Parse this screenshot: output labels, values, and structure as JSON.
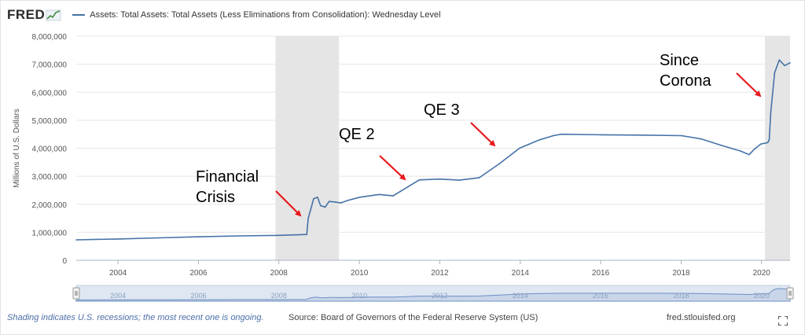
{
  "header": {
    "logo": "FRED",
    "series_label": "Assets: Total Assets: Total Assets (Less Eliminations from Consolidation): Wednesday Level"
  },
  "colors": {
    "series": "#4572a7",
    "recession": "#e5e5e5",
    "annotation_arrow": "#e8191c",
    "navigator_fill": "#c9d6ea",
    "navigator_mask": "#dfe7f3"
  },
  "icons": {
    "logo_mark": "fred-chart-icon",
    "fullscreen": "fullscreen-icon"
  },
  "chart_data": {
    "type": "line",
    "title": "",
    "xlabel": "",
    "ylabel": "Millions of U.S. Dollars",
    "xlim": [
      "2002-12-18",
      "2020-09-16"
    ],
    "ylim": [
      0,
      8000000
    ],
    "x_ticks": [
      "2004",
      "2006",
      "2008",
      "2010",
      "2012",
      "2014",
      "2016",
      "2018",
      "2020"
    ],
    "y_ticks": [
      "0",
      "1,000,000",
      "2,000,000",
      "3,000,000",
      "4,000,000",
      "5,000,000",
      "6,000,000",
      "7,000,000",
      "8,000,000"
    ],
    "grid": "horizontal",
    "recessions": [
      {
        "start": "2007-12-01",
        "end": "2009-06-30"
      },
      {
        "start": "2020-02-01",
        "end": "2020-09-16"
      }
    ],
    "series": [
      {
        "name": "Assets: Total Assets: Total Assets (Less Eliminations from Consolidation): Wednesday Level",
        "x": [
          "2002-12-18",
          "2004-01-01",
          "2005-01-01",
          "2006-01-01",
          "2007-01-01",
          "2008-01-01",
          "2008-09-10",
          "2008-09-24",
          "2008-10-15",
          "2008-11-12",
          "2008-12-17",
          "2009-01-14",
          "2009-02-25",
          "2009-04-01",
          "2009-05-27",
          "2009-07-15",
          "2009-09-30",
          "2010-01-06",
          "2010-06-30",
          "2010-11-03",
          "2011-01-05",
          "2011-06-29",
          "2011-12-28",
          "2012-06-27",
          "2012-12-26",
          "2013-06-26",
          "2013-12-25",
          "2014-06-25",
          "2014-10-29",
          "2015-01-07",
          "2016-01-06",
          "2017-01-04",
          "2018-01-03",
          "2018-07-04",
          "2019-01-02",
          "2019-06-26",
          "2019-09-11",
          "2019-10-23",
          "2019-12-25",
          "2020-02-26",
          "2020-03-11",
          "2020-03-25",
          "2020-04-29",
          "2020-06-10",
          "2020-07-29",
          "2020-09-16"
        ],
        "y": [
          730000,
          760000,
          800000,
          840000,
          870000,
          890000,
          920000,
          1500000,
          1800000,
          2200000,
          2250000,
          1950000,
          1900000,
          2100000,
          2080000,
          2050000,
          2150000,
          2250000,
          2350000,
          2300000,
          2450000,
          2870000,
          2900000,
          2860000,
          2950000,
          3450000,
          4000000,
          4300000,
          4450000,
          4500000,
          4480000,
          4470000,
          4450000,
          4330000,
          4100000,
          3900000,
          3770000,
          3950000,
          4150000,
          4200000,
          4300000,
          5300000,
          6700000,
          7150000,
          6950000,
          7050000
        ]
      }
    ],
    "annotations": [
      {
        "text": "Financial\nCrisis",
        "target_x": "2008-10-01",
        "target_y": 1500000
      },
      {
        "text": "QE 2",
        "target_x": "2011-03-01",
        "target_y": 2800000
      },
      {
        "text": "QE 3",
        "target_x": "2013-06-01",
        "target_y": 4100000
      },
      {
        "text": "Since\nCorona",
        "target_x": "2020-03-15",
        "target_y": 5800000
      }
    ],
    "navigator_ticks": [
      "2004",
      "2006",
      "2008",
      "2010",
      "2012",
      "2014",
      "2016",
      "2018",
      "2020"
    ]
  },
  "footer": {
    "shading_note": "Shading indicates U.S. recessions; the most recent one is ongoing.",
    "source": "Source: Board of Governors of the Federal Reserve System (US)",
    "url": "fred.stlouisfed.org"
  }
}
